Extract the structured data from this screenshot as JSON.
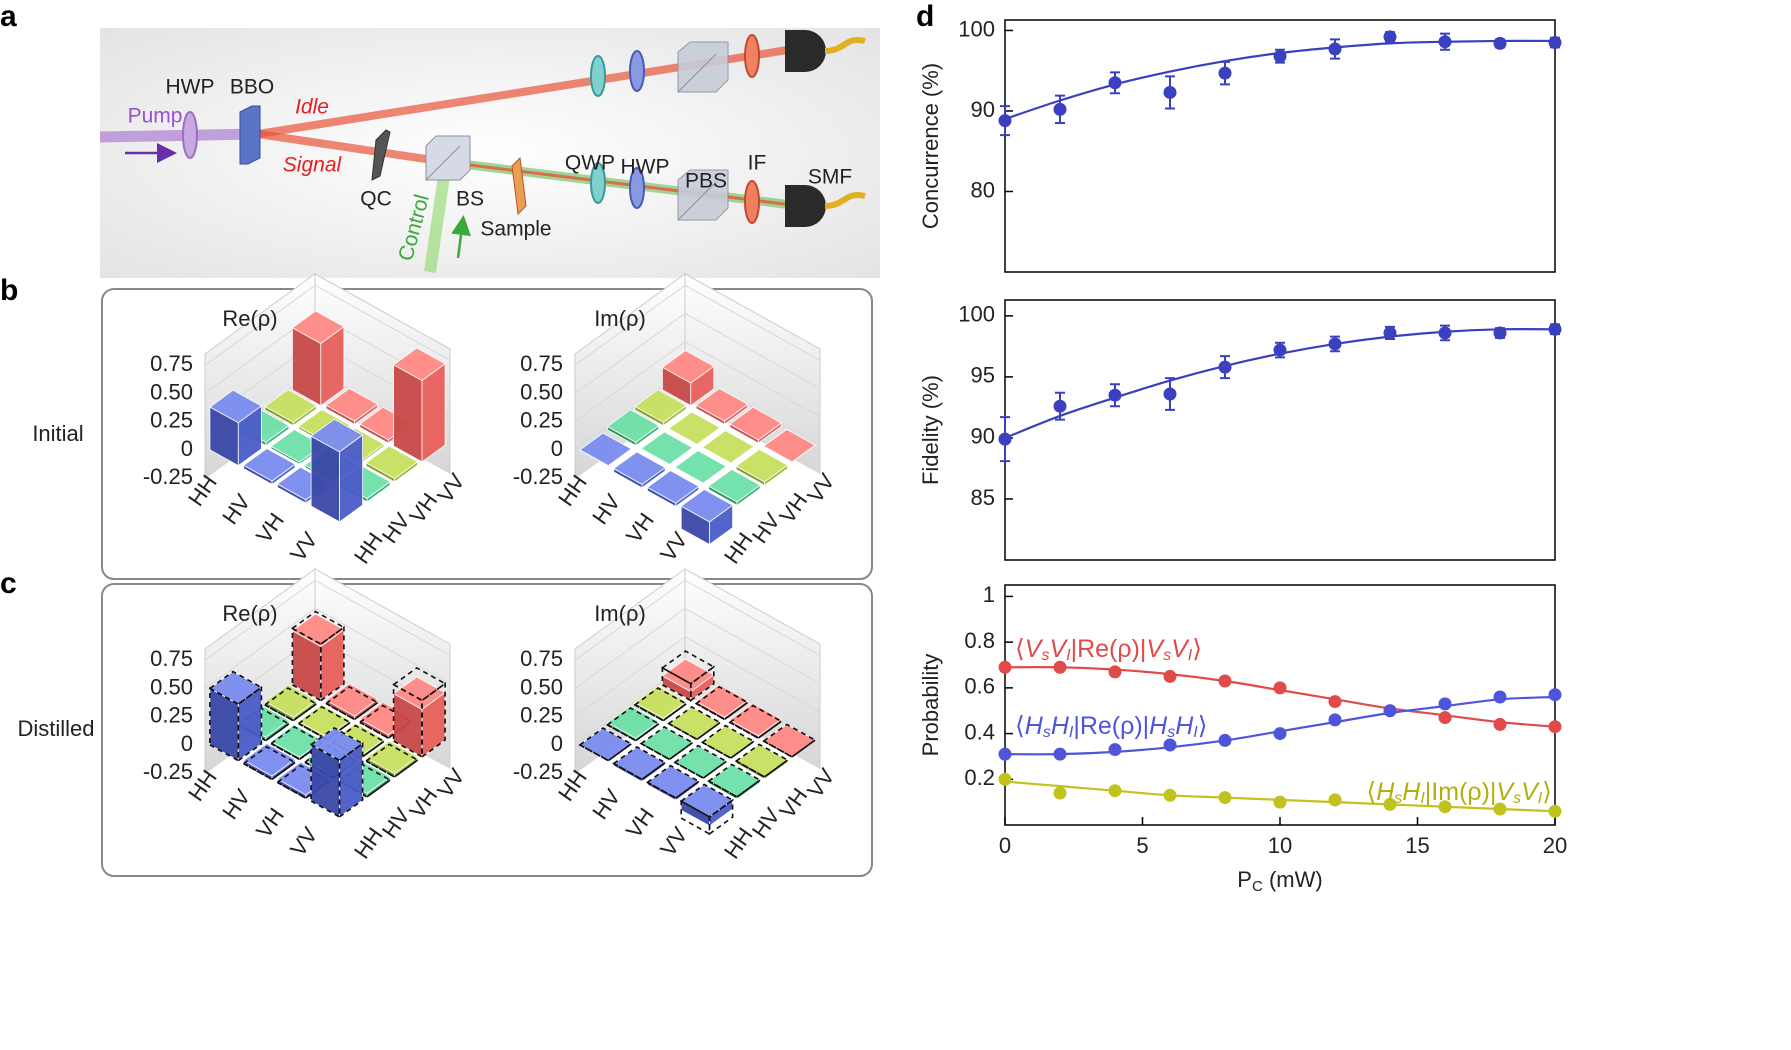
{
  "panel_labels": [
    "a",
    "b",
    "c",
    "d"
  ],
  "setup": {
    "hwp1": "HWP",
    "bbo": "BBO",
    "pump": "Pump",
    "idle": "Idle",
    "signal": "Signal",
    "qc": "QC",
    "bs": "BS",
    "control": "Control",
    "sample": "Sample",
    "qwp": "QWP",
    "hwp2": "HWP",
    "pbs": "PBS",
    "if": "IF",
    "smf": "SMF"
  },
  "row_labels": [
    "Initial",
    "Distilled"
  ],
  "chart_data": [
    {
      "type": "bar3d",
      "title": "Re(ρ)",
      "categories": [
        "HH",
        "HV",
        "VH",
        "VV"
      ],
      "values": [
        [
          0.38,
          0.03,
          0.03,
          0.55
        ],
        [
          0.03,
          0.02,
          0.02,
          0.03
        ],
        [
          0.03,
          0.02,
          0.02,
          0.03
        ],
        [
          0.62,
          0.03,
          0.03,
          0.72
        ]
      ],
      "zlim": [
        -0.25,
        0.85
      ],
      "zticks": [
        -0.25,
        0,
        0.25,
        {
          "value": 0.5,
          "label": "0.50"
        },
        0.75
      ]
    },
    {
      "type": "bar3d",
      "title": "Im(ρ)",
      "categories": [
        "HH",
        "HV",
        "VH",
        "VV"
      ],
      "values": [
        [
          0,
          0.03,
          0.03,
          0.2
        ],
        [
          -0.03,
          0,
          0,
          0.03
        ],
        [
          -0.03,
          0,
          0,
          0.03
        ],
        [
          -0.2,
          -0.03,
          -0.03,
          0
        ]
      ],
      "zlim": [
        -0.25,
        0.85
      ],
      "zticks": [
        -0.25,
        0,
        0.25,
        {
          "value": 0.5,
          "label": "0.50"
        },
        0.75
      ]
    },
    {
      "type": "bar3d",
      "title": "Re(ρ)",
      "categories": [
        "HH",
        "HV",
        "VH",
        "VV"
      ],
      "values": [
        [
          0.5,
          0.03,
          0.03,
          0.48
        ],
        [
          0.03,
          0.02,
          0.02,
          0.03
        ],
        [
          0.03,
          0.02,
          0.02,
          0.03
        ],
        [
          0.5,
          0.03,
          0.03,
          0.42
        ]
      ],
      "ideal": [
        [
          0.5,
          0,
          0,
          0.5
        ],
        [
          0,
          0,
          0,
          0
        ],
        [
          0,
          0,
          0,
          0
        ],
        [
          0.5,
          0,
          0,
          0.5
        ]
      ],
      "zlim": [
        -0.25,
        0.85
      ],
      "zticks": [
        -0.25,
        0,
        0.25,
        {
          "value": 0.5,
          "label": "0.50"
        },
        0.75
      ]
    },
    {
      "type": "bar3d",
      "title": "Im(ρ)",
      "categories": [
        "HH",
        "HV",
        "VH",
        "VV"
      ],
      "values": [
        [
          0,
          0.02,
          0.02,
          0.08
        ],
        [
          -0.02,
          0,
          0,
          0.02
        ],
        [
          -0.02,
          0,
          0,
          0.02
        ],
        [
          -0.08,
          -0.02,
          -0.02,
          0
        ]
      ],
      "ideal": [
        [
          0,
          0,
          0,
          0.15
        ],
        [
          0,
          0,
          0,
          0
        ],
        [
          0,
          0,
          0,
          0
        ],
        [
          -0.15,
          0,
          0,
          0
        ]
      ],
      "zlim": [
        -0.25,
        0.85
      ],
      "zticks": [
        -0.25,
        0,
        0.25,
        {
          "value": 0.5,
          "label": "0.50"
        },
        0.75
      ]
    },
    {
      "type": "line",
      "ylabel": "Concurrence (%)",
      "x": [
        0,
        2,
        4,
        6,
        8,
        10,
        12,
        14,
        16,
        18,
        20
      ],
      "series": [
        {
          "color": "#3b40bf",
          "values": [
            88.8,
            90.2,
            93.5,
            92.3,
            94.7,
            96.8,
            97.7,
            99.2,
            98.6,
            98.4,
            98.5
          ],
          "errors": [
            1.8,
            1.7,
            1.3,
            2.0,
            1.4,
            0.8,
            1.2,
            0.6,
            1.0,
            0.5,
            0.6
          ],
          "fit": [
            89.0,
            91.3,
            93.3,
            94.9,
            96.2,
            97.2,
            97.9,
            98.4,
            98.6,
            98.7,
            98.7
          ]
        }
      ],
      "xlim": [
        0,
        20
      ],
      "ylim": [
        70,
        101.3
      ],
      "yticks": [
        80,
        90,
        100
      ]
    },
    {
      "type": "line",
      "ylabel": "Fidelity (%)",
      "x": [
        0,
        2,
        4,
        6,
        8,
        10,
        12,
        14,
        16,
        18,
        20
      ],
      "series": [
        {
          "color": "#3b40bf",
          "values": [
            89.9,
            92.6,
            93.5,
            93.6,
            95.8,
            97.2,
            97.7,
            98.6,
            98.6,
            98.6,
            98.9
          ],
          "errors": [
            1.8,
            1.1,
            0.9,
            1.3,
            0.9,
            0.6,
            0.6,
            0.5,
            0.6,
            0.4,
            0.4
          ],
          "fit": [
            90.0,
            91.8,
            93.3,
            94.7,
            95.9,
            96.9,
            97.7,
            98.3,
            98.7,
            98.9,
            98.9
          ]
        }
      ],
      "xlim": [
        0,
        20
      ],
      "ylim": [
        80,
        101.3
      ],
      "yticks": [
        85,
        90,
        95,
        100
      ]
    },
    {
      "type": "line",
      "ylabel": "Probability",
      "xlabel": [
        "P",
        "C",
        " (mW)"
      ],
      "x": [
        0,
        2,
        4,
        6,
        8,
        10,
        12,
        14,
        16,
        18,
        20
      ],
      "series": [
        {
          "color": "#e04a4a",
          "values": [
            0.69,
            0.69,
            0.67,
            0.65,
            0.63,
            0.6,
            0.54,
            0.5,
            0.47,
            0.44,
            0.43
          ],
          "fit": [
            0.69,
            0.69,
            0.68,
            0.66,
            0.63,
            0.59,
            0.55,
            0.51,
            0.48,
            0.45,
            0.43
          ]
        },
        {
          "color": "#4f55d9",
          "values": [
            0.31,
            0.31,
            0.33,
            0.35,
            0.37,
            0.4,
            0.46,
            0.5,
            0.53,
            0.56,
            0.57
          ],
          "fit": [
            0.31,
            0.31,
            0.32,
            0.34,
            0.37,
            0.41,
            0.45,
            0.49,
            0.52,
            0.55,
            0.56
          ]
        },
        {
          "color": "#c2c21e",
          "values": [
            0.2,
            0.14,
            0.15,
            0.13,
            0.12,
            0.1,
            0.11,
            0.09,
            0.08,
            0.07,
            0.06
          ],
          "fit": [
            0.19,
            0.17,
            0.15,
            0.13,
            0.12,
            0.11,
            0.1,
            0.09,
            0.08,
            0.07,
            0.06
          ]
        }
      ],
      "annotations": [
        {
          "color": "#e04a4a",
          "parts": [
            "⟨",
            "V",
            "s",
            "V",
            "I",
            "|Re(ρ)|",
            "V",
            "s",
            "V",
            "I",
            "⟩"
          ]
        },
        {
          "color": "#4f55d9",
          "parts": [
            "⟨",
            "H",
            "s",
            "H",
            "I",
            "|Re(ρ)|",
            "H",
            "s",
            "H",
            "I",
            "⟩"
          ]
        },
        {
          "color": "#b0b010",
          "parts": [
            "⟨",
            "H",
            "s",
            "H",
            "I",
            "|Im(ρ)|",
            "V",
            "s",
            "V",
            "I",
            "⟩"
          ]
        }
      ],
      "xlim": [
        0,
        20
      ],
      "ylim": [
        0,
        1.05
      ],
      "xticks": [
        0,
        5,
        10,
        15,
        20
      ],
      "yticks": [
        0.2,
        0.4,
        0.6,
        0.8,
        1
      ]
    }
  ]
}
